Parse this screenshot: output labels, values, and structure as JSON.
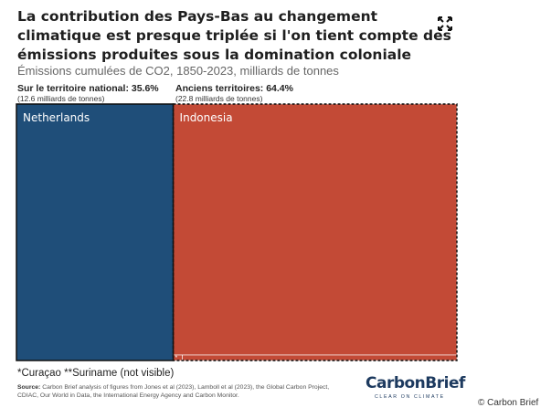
{
  "header": {
    "title": "La contribution des Pays-Bas au changement climatique est presque triplée si l'on tient compte des émissions produites sous la domination coloniale",
    "subtitle": "Émissions cumulées de CO2, 1850-2023, milliards de tonnes"
  },
  "groups": [
    {
      "label": "Sur le territoire national: 35.6%",
      "sublabel": "(12.6 milliards de tonnes)"
    },
    {
      "label": "Anciens territoires: 64.4%",
      "sublabel": "(22.8 milliards de tonnes)"
    }
  ],
  "chart_data": {
    "type": "treemap",
    "title": "La contribution des Pays-Bas au changement climatique est presque triplée si l'on tient compte des émissions produites sous la domination coloniale",
    "subtitle": "Émissions cumulées de CO2, 1850-2023, milliards de tonnes",
    "unit": "milliards de tonnes",
    "items": [
      {
        "name": "Netherlands",
        "group": "Sur le territoire national",
        "value": 12.6,
        "share": 35.6,
        "color": "#1f4e79"
      },
      {
        "name": "Indonesia",
        "group": "Anciens territoires",
        "value": 22.6,
        "share": 63.8,
        "color": "#c34a36"
      },
      {
        "name": "*",
        "group": "Anciens territoires",
        "value": 0.1,
        "share": 0.3,
        "color": "#c34a36"
      },
      {
        "name": "",
        "group": "Anciens territoires",
        "value": 0.1,
        "share": 0.3,
        "color": "#c34a36"
      }
    ],
    "group_totals": [
      {
        "group": "Sur le territoire national",
        "value": 12.6,
        "share": 35.6
      },
      {
        "group": "Anciens territoires",
        "value": 22.8,
        "share": 64.4
      }
    ]
  },
  "footnote": "*Curaçao **Suriname (not visible)",
  "source": {
    "label": "Source:",
    "text": "Carbon Brief analysis of figures from Jones et al (2023), Lamboll et al (2023), the Global Carbon Project, CDIAC, Our World in Data, the International Energy Agency and Carbon Monitor."
  },
  "logo": {
    "part1": "Carbon",
    "part2": "Brief",
    "tagline": "CLEAR ON CLIMATE"
  },
  "copyright": "© Carbon Brief"
}
